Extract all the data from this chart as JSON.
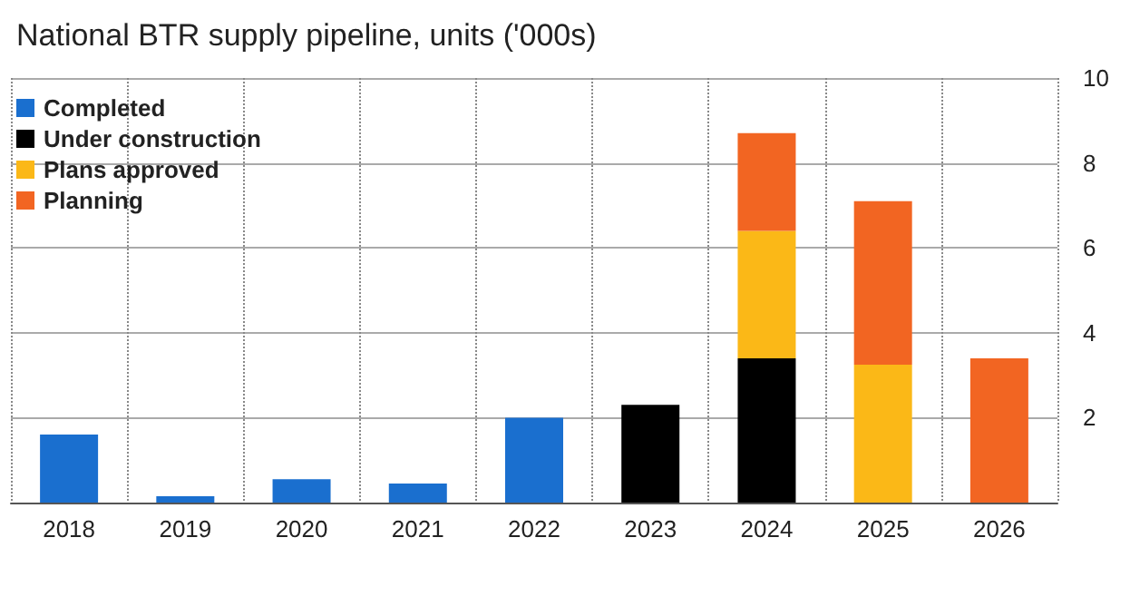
{
  "chart_data": {
    "type": "bar",
    "title": "National BTR supply pipeline, units ('000s)",
    "categories": [
      "2018",
      "2019",
      "2020",
      "2021",
      "2022",
      "2023",
      "2024",
      "2025",
      "2026"
    ],
    "series": [
      {
        "name": "Completed",
        "color": "#1a6fcf",
        "values": [
          1.6,
          0.15,
          0.55,
          0.45,
          2.0,
          null,
          null,
          null,
          null
        ]
      },
      {
        "name": "Under construction",
        "color": "#000000",
        "values": [
          null,
          null,
          null,
          null,
          null,
          2.3,
          3.4,
          null,
          null
        ]
      },
      {
        "name": "Plans approved",
        "color": "#fbb817",
        "values": [
          null,
          null,
          null,
          null,
          null,
          null,
          3.0,
          3.25,
          null
        ]
      },
      {
        "name": "Planning",
        "color": "#f26522",
        "values": [
          null,
          null,
          null,
          null,
          null,
          null,
          2.3,
          3.85,
          3.4
        ]
      }
    ],
    "stacked": true,
    "ylim": [
      0,
      10
    ],
    "yticks": [
      2,
      4,
      6,
      8,
      10
    ],
    "grid": true,
    "legend": "top left"
  }
}
